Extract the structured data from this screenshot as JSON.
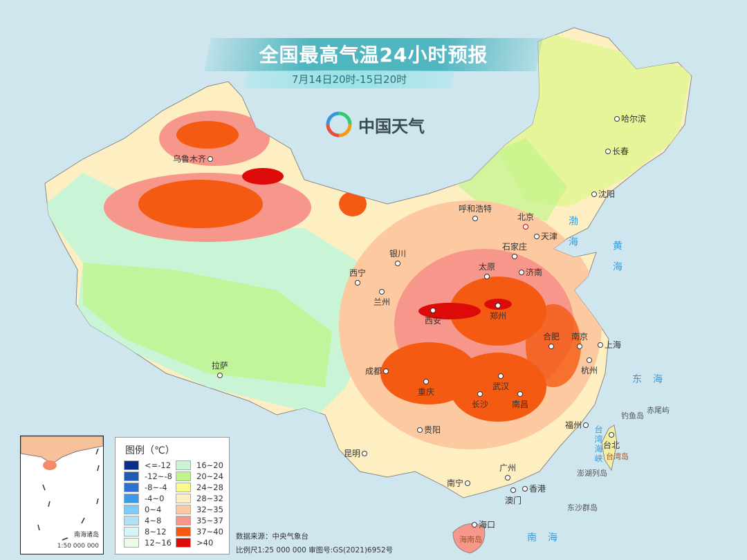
{
  "title": "全国最高气温24小时预报",
  "subtitle": "7月14日20时-15日20时",
  "logo": {
    "text": "中国天气",
    "icon": "swirl-logo-icon"
  },
  "cities": [
    "乌鲁木齐",
    "哈尔滨",
    "长春",
    "沈阳",
    "呼和浩特",
    "北京",
    "天津",
    "石家庄",
    "太原",
    "济南",
    "银川",
    "西宁",
    "兰州",
    "西安",
    "郑州",
    "合肥",
    "南京",
    "上海",
    "杭州",
    "武汉",
    "成都",
    "重庆",
    "长沙",
    "南昌",
    "拉萨",
    "贵阳",
    "昆明",
    "福州",
    "台北",
    "南宁",
    "广州",
    "香港",
    "澳门",
    "海口"
  ],
  "seas": {
    "bohai": "渤海",
    "huanghai": "黄海",
    "donghai": "东海",
    "nanhai": "南海",
    "strait": "台湾海峡"
  },
  "islands": {
    "diaoyu": "钓鱼岛",
    "chiwei": "赤尾屿",
    "taiwan": "台湾岛",
    "penghu": "澎湖列岛",
    "dongsha": "东沙群岛",
    "hainan": "海南岛"
  },
  "legend": {
    "title": "图例（℃）",
    "items": [
      {
        "label": "<=-12",
        "color": "#0b2f86"
      },
      {
        "label": "-12~-8",
        "color": "#1f5bb0"
      },
      {
        "label": "-8~-4",
        "color": "#2b72d0"
      },
      {
        "label": "-4~0",
        "color": "#3d9ae6"
      },
      {
        "label": "0~4",
        "color": "#7fcaf6"
      },
      {
        "label": "4~8",
        "color": "#b1e1f5"
      },
      {
        "label": "8~12",
        "color": "#d5f5fb"
      },
      {
        "label": "12~16",
        "color": "#eafbe8"
      },
      {
        "label": "16~20",
        "color": "#c9f5d6"
      },
      {
        "label": "20~24",
        "color": "#c1f58c"
      },
      {
        "label": "24~28",
        "color": "#fafa8c"
      },
      {
        "label": "28~32",
        "color": "#fdefc1"
      },
      {
        "label": "32~35",
        "color": "#fdc9a0"
      },
      {
        "label": "35~37",
        "color": "#f7968a"
      },
      {
        "label": "37~40",
        "color": "#f45a12"
      },
      {
        "label": ">40",
        "color": "#dd0a0a"
      }
    ]
  },
  "inset": {
    "name": "南海诸岛",
    "scale": "1:50 000 000"
  },
  "source": "数据来源：中央气象台",
  "scale": "比例尺1:25 000 000   审图号:GS(2021)6952号"
}
